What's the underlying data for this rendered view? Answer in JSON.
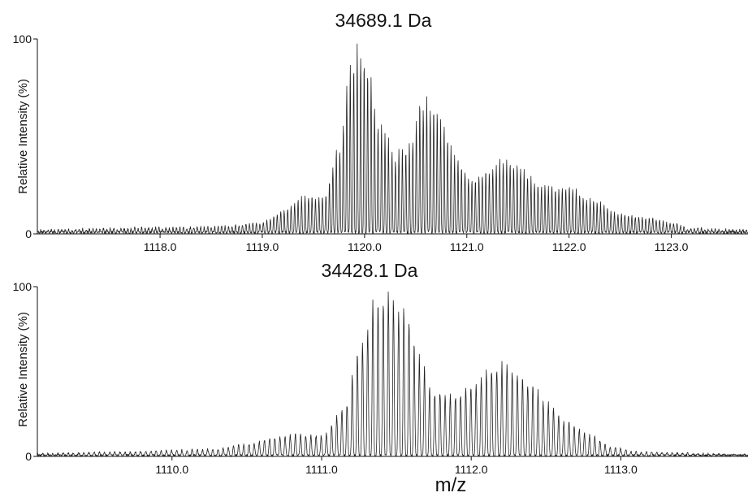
{
  "chart_data": [
    {
      "type": "line",
      "title": "34689.1 Da",
      "ylabel": "Relative Intensity (%)",
      "xlabel": "",
      "xlim": [
        1116.8,
        1123.75
      ],
      "ylim": [
        0,
        100
      ],
      "xticks": [
        1118.0,
        1119.0,
        1120.0,
        1121.0,
        1122.0,
        1123.0
      ],
      "xtick_labels": [
        "1118.0",
        "1119.0",
        "1120.0",
        "1121.0",
        "1122.0",
        "1123.0"
      ],
      "yticks": [
        0,
        100
      ],
      "ytick_labels": [
        "0",
        "100"
      ],
      "peak_spacing": 0.034,
      "baseline_noise": 1.5,
      "envelope": [
        [
          1116.8,
          1
        ],
        [
          1117.5,
          2
        ],
        [
          1118.0,
          2.5
        ],
        [
          1118.5,
          3
        ],
        [
          1119.0,
          5
        ],
        [
          1119.2,
          12
        ],
        [
          1119.4,
          19
        ],
        [
          1119.6,
          20
        ],
        [
          1119.75,
          45
        ],
        [
          1119.85,
          87
        ],
        [
          1119.95,
          100
        ],
        [
          1120.05,
          85
        ],
        [
          1120.15,
          58
        ],
        [
          1120.3,
          42
        ],
        [
          1120.45,
          48
        ],
        [
          1120.55,
          70
        ],
        [
          1120.65,
          70
        ],
        [
          1120.75,
          60
        ],
        [
          1120.9,
          40
        ],
        [
          1121.05,
          28
        ],
        [
          1121.2,
          34
        ],
        [
          1121.35,
          40
        ],
        [
          1121.5,
          36
        ],
        [
          1121.7,
          26
        ],
        [
          1121.85,
          24
        ],
        [
          1122.0,
          25
        ],
        [
          1122.2,
          18
        ],
        [
          1122.5,
          10
        ],
        [
          1122.8,
          8
        ],
        [
          1123.0,
          5
        ],
        [
          1123.2,
          2
        ],
        [
          1123.75,
          1
        ]
      ]
    },
    {
      "type": "line",
      "title": "34428.1 Da",
      "ylabel": "Relative Intensity (%)",
      "xlabel": "m/z",
      "xlim": [
        1109.1,
        1113.85
      ],
      "ylim": [
        0,
        100
      ],
      "xticks": [
        1110.0,
        1111.0,
        1112.0,
        1113.0
      ],
      "xtick_labels": [
        "1110.0",
        "1111.0",
        "1112.0",
        "1113.0"
      ],
      "yticks": [
        0,
        100
      ],
      "ytick_labels": [
        "0",
        "100"
      ],
      "peak_spacing": 0.0345,
      "baseline_noise": 1.2,
      "envelope": [
        [
          1109.1,
          1
        ],
        [
          1109.6,
          2
        ],
        [
          1110.0,
          3
        ],
        [
          1110.3,
          4
        ],
        [
          1110.5,
          7
        ],
        [
          1110.7,
          11
        ],
        [
          1110.85,
          13
        ],
        [
          1111.0,
          12
        ],
        [
          1111.15,
          28
        ],
        [
          1111.25,
          65
        ],
        [
          1111.35,
          92
        ],
        [
          1111.45,
          100
        ],
        [
          1111.55,
          90
        ],
        [
          1111.65,
          60
        ],
        [
          1111.75,
          40
        ],
        [
          1111.9,
          37
        ],
        [
          1112.0,
          43
        ],
        [
          1112.1,
          52
        ],
        [
          1112.2,
          56
        ],
        [
          1112.3,
          52
        ],
        [
          1112.4,
          45
        ],
        [
          1112.5,
          32
        ],
        [
          1112.65,
          20
        ],
        [
          1112.8,
          12
        ],
        [
          1112.95,
          5
        ],
        [
          1113.1,
          2
        ],
        [
          1113.85,
          0.5
        ]
      ]
    }
  ]
}
